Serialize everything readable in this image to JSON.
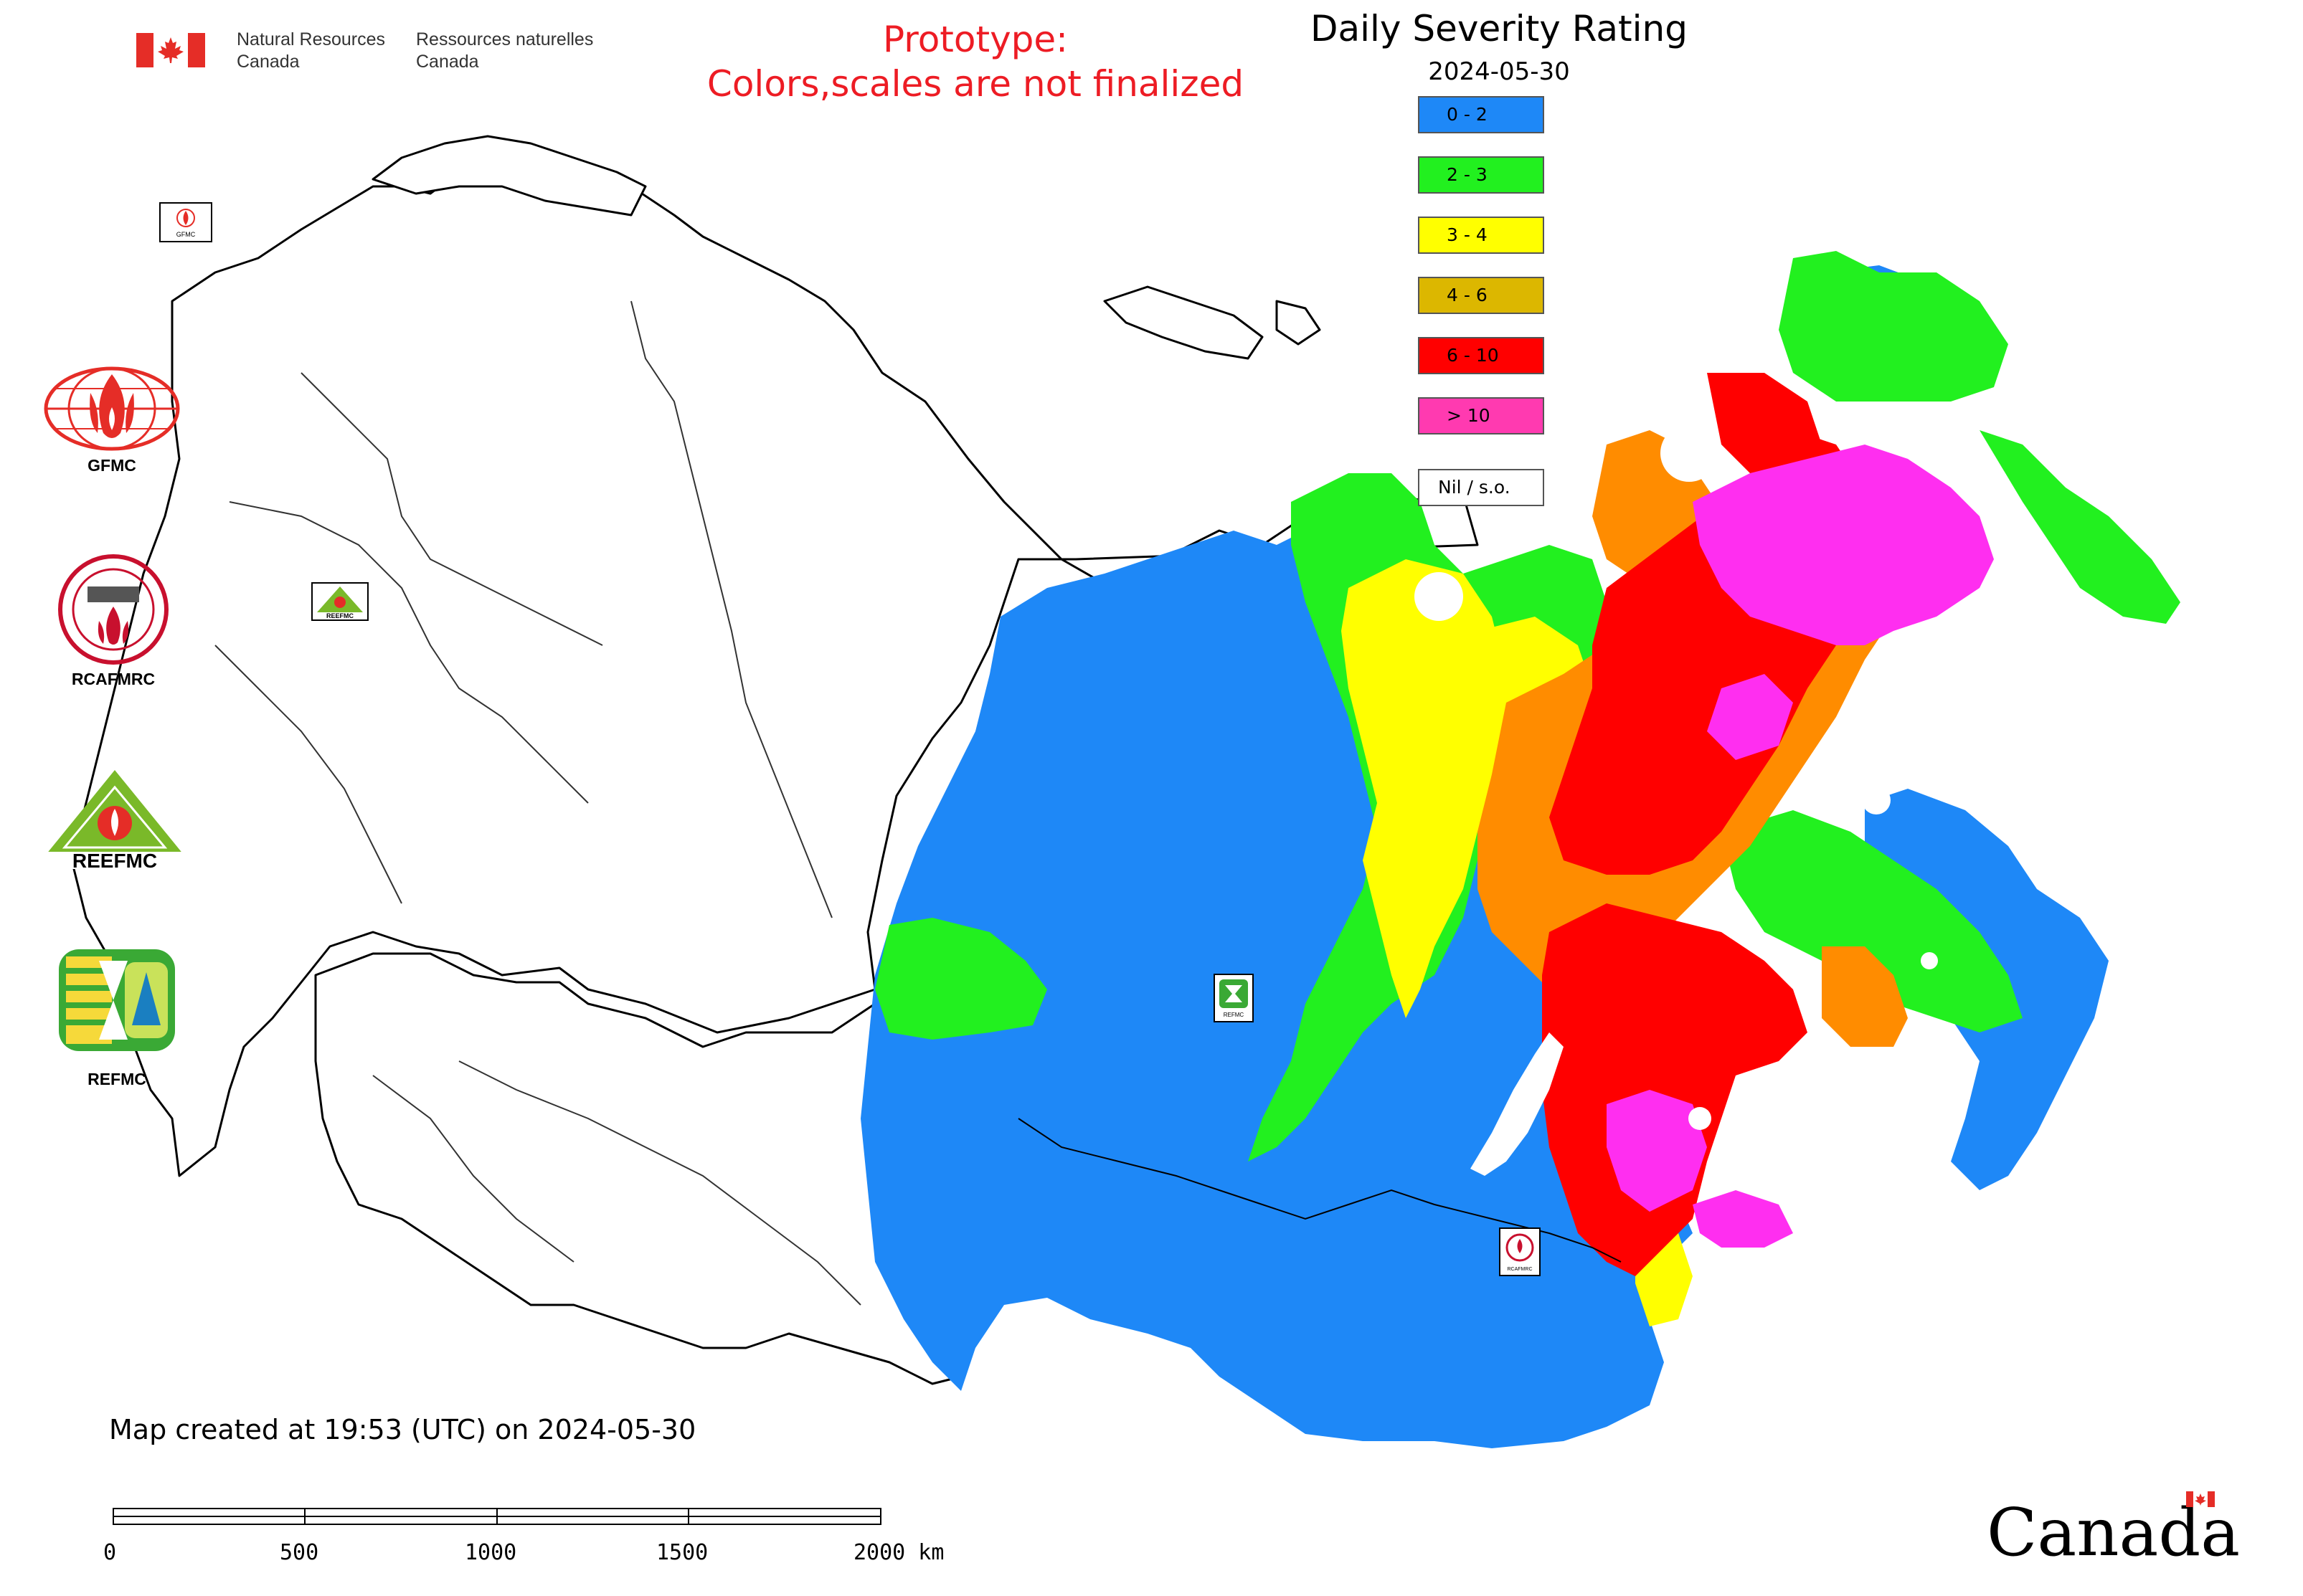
{
  "header": {
    "department_en_line1": "Natural Resources",
    "department_en_line2": "Canada",
    "department_fr_line1": "Ressources naturelles",
    "department_fr_line2": "Canada",
    "flag_color": "#e52d27"
  },
  "notice": {
    "line1": "Prototype:",
    "line2": "Colors,scales are not finalized",
    "color": "#ed1c24"
  },
  "map": {
    "title": "Daily Severity Rating",
    "date": "2024-05-30",
    "legend": [
      {
        "label": "0 - 2",
        "color": "#1e88f7"
      },
      {
        "label": "2 - 3",
        "color": "#22f01f"
      },
      {
        "label": "3 - 4",
        "color": "#ffff00"
      },
      {
        "label": "4 - 6",
        "color": "#dcb700"
      },
      {
        "label": "6 - 10",
        "color": "#ff0000"
      },
      {
        "label": "> 10",
        "color": "#ff3ab0"
      },
      {
        "label": "Nil / s.o.",
        "color": "#ffffff"
      }
    ],
    "orange_zone_color": "#ff8c00",
    "magenta_zone_color": "#ff2ef0",
    "markers": [
      {
        "name": "GFMC",
        "label": "GFMC"
      },
      {
        "name": "REEFMC",
        "label": "REEFMC"
      },
      {
        "name": "REFMC",
        "label": "REFMC"
      },
      {
        "name": "RCAFMRC",
        "label": "RCAFMRC"
      }
    ]
  },
  "agencies": [
    {
      "name": "GFMC",
      "label": "GFMC",
      "icon": "gfmc-globe-fire-icon",
      "color": "#e52d27"
    },
    {
      "name": "RCAFMRC",
      "label": "RCAFMRC",
      "icon": "rcafmrc-seal-icon",
      "color": "#c8102e"
    },
    {
      "name": "REEFMC",
      "label": "REEFMC",
      "icon": "reefmc-triangle-icon",
      "color": "#7ab929"
    },
    {
      "name": "REFMC",
      "label": "REFMC",
      "icon": "refmc-sigma-icon",
      "color": "#3aa935"
    }
  ],
  "footer": {
    "created_note": "Map created at 19:53 (UTC) on 2024-05-30",
    "scale_ticks": [
      "0",
      "500",
      "1000",
      "1500",
      "2000 km"
    ],
    "wordmark": "Canada"
  }
}
